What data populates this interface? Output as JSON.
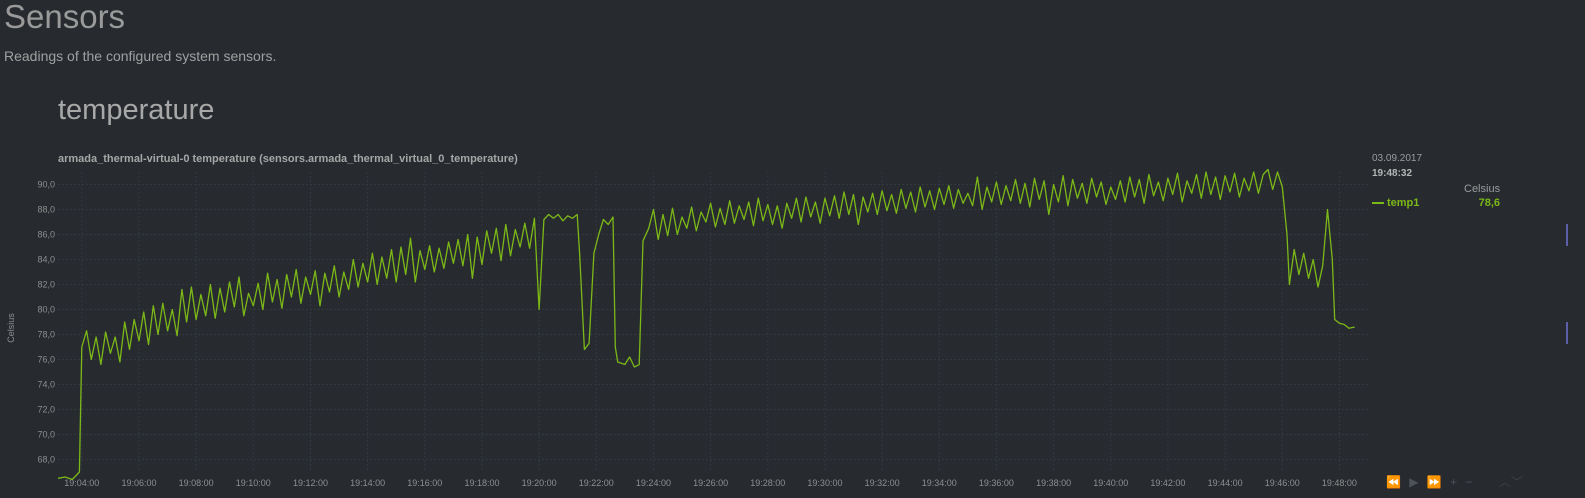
{
  "page": {
    "title": "Sensors",
    "subtitle": "Readings of the configured system sensors."
  },
  "section": {
    "title": "temperature"
  },
  "chart": {
    "title": "armada_thermal-virtual-0 temperature (sensors.armada_thermal_virtual_0_temperature)"
  },
  "legend": {
    "date": "03.09.2017",
    "time": "19:48:32",
    "units": "Celsius",
    "series_name": "temp1",
    "series_value": "78,6"
  },
  "toolbar": {
    "rewind_icon": "⏪",
    "play_icon": "▶",
    "forward_icon": "⏩",
    "zoom_in_icon": "+",
    "zoom_out_icon": "−",
    "resize_icon": "︿﹀"
  },
  "colors": {
    "background": "#272b30",
    "series": "#7cb817",
    "grid": "#33383e",
    "axis_text": "#8e8e8e"
  },
  "chart_data": {
    "type": "line",
    "ylabel": "Celsius",
    "ylim": [
      67,
      91
    ],
    "xlim": [
      "19:03:10",
      "19:49:00"
    ],
    "y_ticks": [
      "68,0",
      "70,0",
      "72,0",
      "74,0",
      "76,0",
      "78,0",
      "80,0",
      "82,0",
      "84,0",
      "86,0",
      "88,0",
      "90,0"
    ],
    "x_ticks": [
      "19:04:00",
      "19:06:00",
      "19:08:00",
      "19:10:00",
      "19:12:00",
      "19:14:00",
      "19:16:00",
      "19:18:00",
      "19:20:00",
      "19:22:00",
      "19:24:00",
      "19:26:00",
      "19:28:00",
      "19:30:00",
      "19:32:00",
      "19:34:00",
      "19:36:00",
      "19:38:00",
      "19:40:00",
      "19:42:00",
      "19:44:00",
      "19:46:00",
      "19:48:00"
    ],
    "grid": true,
    "series": [
      {
        "name": "temp1",
        "color": "#7cb817",
        "points": [
          [
            "19:03:10",
            66.5
          ],
          [
            "19:03:25",
            66.6
          ],
          [
            "19:03:40",
            66.4
          ],
          [
            "19:03:55",
            67.0
          ],
          [
            "19:04:00",
            77.0
          ],
          [
            "19:04:10",
            78.3
          ],
          [
            "19:04:20",
            76.0
          ],
          [
            "19:04:30",
            77.8
          ],
          [
            "19:04:40",
            75.6
          ],
          [
            "19:04:50",
            78.2
          ],
          [
            "19:05:00",
            76.5
          ],
          [
            "19:05:10",
            77.8
          ],
          [
            "19:05:20",
            75.8
          ],
          [
            "19:05:30",
            79.0
          ],
          [
            "19:05:40",
            76.8
          ],
          [
            "19:05:50",
            79.2
          ],
          [
            "19:06:00",
            77.5
          ],
          [
            "19:06:10",
            79.8
          ],
          [
            "19:06:20",
            77.2
          ],
          [
            "19:06:30",
            80.3
          ],
          [
            "19:06:40",
            78.0
          ],
          [
            "19:06:50",
            80.5
          ],
          [
            "19:07:00",
            78.3
          ],
          [
            "19:07:10",
            80.0
          ],
          [
            "19:07:20",
            77.9
          ],
          [
            "19:07:30",
            81.6
          ],
          [
            "19:07:40",
            79.0
          ],
          [
            "19:07:50",
            81.8
          ],
          [
            "19:08:00",
            79.2
          ],
          [
            "19:08:10",
            81.2
          ],
          [
            "19:08:20",
            79.5
          ],
          [
            "19:08:30",
            82.0
          ],
          [
            "19:08:40",
            79.3
          ],
          [
            "19:08:50",
            81.7
          ],
          [
            "19:09:00",
            79.8
          ],
          [
            "19:09:10",
            82.2
          ],
          [
            "19:09:20",
            80.2
          ],
          [
            "19:09:30",
            82.6
          ],
          [
            "19:09:40",
            79.5
          ],
          [
            "19:09:50",
            81.3
          ],
          [
            "19:10:00",
            80.3
          ],
          [
            "19:10:10",
            82.1
          ],
          [
            "19:10:20",
            80.0
          ],
          [
            "19:10:30",
            82.9
          ],
          [
            "19:10:40",
            80.6
          ],
          [
            "19:10:50",
            82.4
          ],
          [
            "19:11:00",
            80.1
          ],
          [
            "19:11:10",
            82.8
          ],
          [
            "19:11:20",
            81.0
          ],
          [
            "19:11:30",
            83.2
          ],
          [
            "19:11:40",
            80.5
          ],
          [
            "19:11:50",
            82.6
          ],
          [
            "19:12:00",
            81.2
          ],
          [
            "19:12:10",
            83.1
          ],
          [
            "19:12:20",
            80.3
          ],
          [
            "19:12:30",
            82.9
          ],
          [
            "19:12:40",
            81.4
          ],
          [
            "19:12:50",
            83.5
          ],
          [
            "19:13:00",
            81.0
          ],
          [
            "19:13:10",
            83.0
          ],
          [
            "19:13:20",
            81.6
          ],
          [
            "19:13:30",
            84.0
          ],
          [
            "19:13:40",
            81.8
          ],
          [
            "19:13:50",
            83.7
          ],
          [
            "19:14:00",
            82.2
          ],
          [
            "19:14:10",
            84.5
          ],
          [
            "19:14:20",
            82.0
          ],
          [
            "19:14:30",
            84.2
          ],
          [
            "19:14:40",
            82.5
          ],
          [
            "19:14:50",
            84.8
          ],
          [
            "19:15:00",
            82.2
          ],
          [
            "19:15:10",
            85.0
          ],
          [
            "19:15:20",
            82.8
          ],
          [
            "19:15:30",
            85.7
          ],
          [
            "19:15:40",
            82.2
          ],
          [
            "19:15:50",
            84.7
          ],
          [
            "19:16:00",
            83.2
          ],
          [
            "19:16:10",
            85.1
          ],
          [
            "19:16:20",
            83.0
          ],
          [
            "19:16:30",
            84.9
          ],
          [
            "19:16:40",
            83.3
          ],
          [
            "19:16:50",
            85.4
          ],
          [
            "19:17:00",
            83.7
          ],
          [
            "19:17:10",
            85.6
          ],
          [
            "19:17:20",
            83.5
          ],
          [
            "19:17:30",
            86.0
          ],
          [
            "19:17:40",
            82.5
          ],
          [
            "19:17:50",
            85.8
          ],
          [
            "19:18:00",
            83.6
          ],
          [
            "19:18:10",
            86.3
          ],
          [
            "19:18:20",
            84.5
          ],
          [
            "19:18:30",
            86.5
          ],
          [
            "19:18:40",
            83.9
          ],
          [
            "19:18:50",
            86.8
          ],
          [
            "19:19:00",
            84.3
          ],
          [
            "19:19:10",
            86.4
          ],
          [
            "19:19:20",
            85.0
          ],
          [
            "19:19:30",
            86.9
          ],
          [
            "19:19:40",
            84.9
          ],
          [
            "19:19:50",
            87.3
          ],
          [
            "19:20:00",
            80.0
          ],
          [
            "19:20:10",
            87.2
          ],
          [
            "19:20:20",
            87.6
          ],
          [
            "19:20:30",
            87.3
          ],
          [
            "19:20:40",
            87.6
          ],
          [
            "19:20:50",
            87.1
          ],
          [
            "19:21:00",
            87.5
          ],
          [
            "19:21:10",
            87.3
          ],
          [
            "19:21:20",
            87.6
          ],
          [
            "19:21:25",
            84.5
          ],
          [
            "19:21:35",
            76.8
          ],
          [
            "19:21:45",
            77.3
          ],
          [
            "19:21:55",
            84.5
          ],
          [
            "19:22:05",
            86.0
          ],
          [
            "19:22:15",
            87.2
          ],
          [
            "19:22:25",
            86.8
          ],
          [
            "19:22:35",
            87.4
          ],
          [
            "19:22:40",
            77.0
          ],
          [
            "19:22:45",
            75.8
          ],
          [
            "19:23:00",
            75.6
          ],
          [
            "19:23:10",
            76.2
          ],
          [
            "19:23:20",
            75.4
          ],
          [
            "19:23:30",
            75.6
          ],
          [
            "19:23:38",
            85.5
          ],
          [
            "19:23:50",
            86.5
          ],
          [
            "19:24:00",
            88.0
          ],
          [
            "19:24:10",
            85.6
          ],
          [
            "19:24:20",
            87.6
          ],
          [
            "19:24:30",
            85.9
          ],
          [
            "19:24:40",
            88.1
          ],
          [
            "19:24:50",
            86.0
          ],
          [
            "19:25:00",
            87.4
          ],
          [
            "19:25:10",
            86.5
          ],
          [
            "19:25:20",
            88.2
          ],
          [
            "19:25:30",
            86.3
          ],
          [
            "19:25:40",
            87.8
          ],
          [
            "19:25:50",
            87.0
          ],
          [
            "19:26:00",
            88.5
          ],
          [
            "19:26:10",
            86.6
          ],
          [
            "19:26:20",
            88.1
          ],
          [
            "19:26:30",
            86.8
          ],
          [
            "19:26:40",
            88.7
          ],
          [
            "19:26:50",
            86.9
          ],
          [
            "19:27:00",
            88.3
          ],
          [
            "19:27:10",
            87.2
          ],
          [
            "19:27:20",
            88.6
          ],
          [
            "19:27:30",
            86.7
          ],
          [
            "19:27:40",
            88.9
          ],
          [
            "19:27:50",
            87.1
          ],
          [
            "19:28:00",
            88.4
          ],
          [
            "19:28:10",
            86.8
          ],
          [
            "19:28:20",
            88.3
          ],
          [
            "19:28:30",
            86.5
          ],
          [
            "19:28:40",
            88.5
          ],
          [
            "19:28:50",
            87.3
          ],
          [
            "19:29:00",
            88.9
          ],
          [
            "19:29:10",
            87.0
          ],
          [
            "19:29:20",
            89.0
          ],
          [
            "19:29:30",
            87.4
          ],
          [
            "19:29:40",
            88.6
          ],
          [
            "19:29:50",
            86.9
          ],
          [
            "19:30:00",
            88.9
          ],
          [
            "19:30:10",
            87.5
          ],
          [
            "19:30:20",
            89.1
          ],
          [
            "19:30:30",
            87.3
          ],
          [
            "19:30:40",
            89.4
          ],
          [
            "19:30:50",
            87.6
          ],
          [
            "19:31:00",
            89.2
          ],
          [
            "19:31:10",
            86.8
          ],
          [
            "19:31:20",
            89.0
          ],
          [
            "19:31:30",
            87.8
          ],
          [
            "19:31:40",
            89.3
          ],
          [
            "19:31:50",
            87.6
          ],
          [
            "19:32:00",
            89.5
          ],
          [
            "19:32:10",
            87.9
          ],
          [
            "19:32:20",
            89.2
          ],
          [
            "19:32:30",
            87.7
          ],
          [
            "19:32:40",
            89.6
          ],
          [
            "19:32:50",
            88.1
          ],
          [
            "19:33:00",
            89.4
          ],
          [
            "19:33:10",
            87.8
          ],
          [
            "19:33:20",
            89.8
          ],
          [
            "19:33:30",
            88.2
          ],
          [
            "19:33:40",
            89.5
          ],
          [
            "19:33:50",
            88.0
          ],
          [
            "19:34:00",
            89.7
          ],
          [
            "19:34:10",
            88.4
          ],
          [
            "19:34:20",
            89.9
          ],
          [
            "19:34:30",
            88.1
          ],
          [
            "19:34:40",
            89.6
          ],
          [
            "19:34:50",
            88.5
          ],
          [
            "19:35:00",
            89.3
          ],
          [
            "19:35:10",
            88.3
          ],
          [
            "19:35:20",
            90.6
          ],
          [
            "19:35:30",
            88.0
          ],
          [
            "19:35:40",
            89.8
          ],
          [
            "19:35:50",
            88.6
          ],
          [
            "19:36:00",
            90.2
          ],
          [
            "19:36:10",
            88.4
          ],
          [
            "19:36:20",
            89.9
          ],
          [
            "19:36:30",
            88.7
          ],
          [
            "19:36:40",
            90.4
          ],
          [
            "19:36:50",
            88.5
          ],
          [
            "19:37:00",
            90.1
          ],
          [
            "19:37:10",
            88.2
          ],
          [
            "19:37:20",
            90.5
          ],
          [
            "19:37:30",
            88.8
          ],
          [
            "19:37:40",
            90.3
          ],
          [
            "19:37:50",
            87.6
          ],
          [
            "19:38:00",
            90.0
          ],
          [
            "19:38:10",
            88.6
          ],
          [
            "19:38:20",
            90.7
          ],
          [
            "19:38:30",
            88.3
          ],
          [
            "19:38:40",
            90.4
          ],
          [
            "19:38:50",
            88.9
          ],
          [
            "19:39:00",
            90.1
          ],
          [
            "19:39:10",
            88.5
          ],
          [
            "19:39:20",
            90.5
          ],
          [
            "19:39:30",
            89.0
          ],
          [
            "19:39:40",
            90.2
          ],
          [
            "19:39:50",
            88.4
          ],
          [
            "19:40:00",
            89.8
          ],
          [
            "19:40:10",
            88.8
          ],
          [
            "19:40:20",
            90.3
          ],
          [
            "19:40:30",
            88.6
          ],
          [
            "19:40:40",
            90.6
          ],
          [
            "19:40:50",
            89.0
          ],
          [
            "19:41:00",
            90.4
          ],
          [
            "19:41:10",
            88.5
          ],
          [
            "19:41:20",
            90.8
          ],
          [
            "19:41:30",
            89.1
          ],
          [
            "19:41:40",
            90.2
          ],
          [
            "19:41:50",
            88.7
          ],
          [
            "19:42:00",
            90.5
          ],
          [
            "19:42:10",
            89.2
          ],
          [
            "19:42:20",
            90.9
          ],
          [
            "19:42:30",
            88.6
          ],
          [
            "19:42:40",
            90.3
          ],
          [
            "19:42:50",
            89.3
          ],
          [
            "19:43:00",
            90.8
          ],
          [
            "19:43:10",
            88.9
          ],
          [
            "19:43:20",
            91.0
          ],
          [
            "19:43:30",
            89.2
          ],
          [
            "19:43:40",
            90.6
          ],
          [
            "19:43:50",
            88.8
          ],
          [
            "19:44:00",
            90.7
          ],
          [
            "19:44:10",
            89.4
          ],
          [
            "19:44:20",
            90.9
          ],
          [
            "19:44:30",
            89.0
          ],
          [
            "19:44:40",
            90.5
          ],
          [
            "19:44:50",
            89.5
          ],
          [
            "19:45:00",
            91.0
          ],
          [
            "19:45:10",
            89.3
          ],
          [
            "19:45:20",
            90.8
          ],
          [
            "19:45:30",
            91.2
          ],
          [
            "19:45:40",
            89.6
          ],
          [
            "19:45:50",
            91.0
          ],
          [
            "19:46:00",
            89.8
          ],
          [
            "19:46:10",
            86.0
          ],
          [
            "19:46:15",
            82.0
          ],
          [
            "19:46:25",
            84.8
          ],
          [
            "19:46:35",
            82.8
          ],
          [
            "19:46:45",
            84.5
          ],
          [
            "19:46:55",
            82.5
          ],
          [
            "19:47:05",
            84.0
          ],
          [
            "19:47:15",
            81.8
          ],
          [
            "19:47:25",
            83.5
          ],
          [
            "19:47:35",
            88.0
          ],
          [
            "19:47:45",
            84.0
          ],
          [
            "19:47:50",
            79.2
          ],
          [
            "19:48:00",
            78.9
          ],
          [
            "19:48:10",
            78.8
          ],
          [
            "19:48:20",
            78.5
          ],
          [
            "19:48:32",
            78.6
          ]
        ]
      }
    ]
  }
}
